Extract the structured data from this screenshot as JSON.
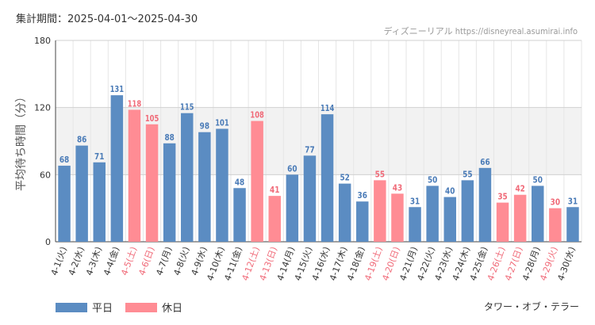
{
  "header": {
    "period": "集計期間：2025-04-01～2025-04-30",
    "watermark": "ディズニーリアル https://disneyreal.asumirai.info"
  },
  "footer": {
    "attraction": "タワー・オブ・テラー"
  },
  "legend": [
    {
      "label": "平日",
      "color": "#5b8cc2"
    },
    {
      "label": "休日",
      "color": "#ff8c94"
    }
  ],
  "colors": {
    "weekday_bar": "#5b8cc2",
    "holiday_bar": "#ff8c94",
    "weekday_text": "#4a7bb7",
    "holiday_text": "#f06a78"
  },
  "chart_data": {
    "type": "bar",
    "ylabel": "平均待ち時間（分）",
    "ylim": [
      0,
      180
    ],
    "yticks": [
      0,
      60,
      120,
      180
    ],
    "grid": true,
    "legend_position": "bottom-left",
    "shaded_band": [
      60,
      120
    ],
    "categories": [
      "4-1(火)",
      "4-2(水)",
      "4-3(木)",
      "4-4(金)",
      "4-5(土)",
      "4-6(日)",
      "4-7(月)",
      "4-8(火)",
      "4-9(水)",
      "4-10(木)",
      "4-11(金)",
      "4-12(土)",
      "4-13(日)",
      "4-14(月)",
      "4-15(火)",
      "4-16(水)",
      "4-17(木)",
      "4-18(金)",
      "4-19(土)",
      "4-20(日)",
      "4-21(月)",
      "4-22(火)",
      "4-23(水)",
      "4-24(木)",
      "4-25(金)",
      "4-26(土)",
      "4-27(日)",
      "4-28(月)",
      "4-29(火)",
      "4-30(水)"
    ],
    "values": [
      68,
      86,
      71,
      131,
      118,
      105,
      88,
      115,
      98,
      101,
      48,
      108,
      41,
      60,
      77,
      114,
      52,
      36,
      55,
      43,
      31,
      50,
      40,
      55,
      66,
      35,
      42,
      50,
      30,
      31
    ],
    "day_type": [
      "平日",
      "平日",
      "平日",
      "平日",
      "休日",
      "休日",
      "平日",
      "平日",
      "平日",
      "平日",
      "平日",
      "休日",
      "休日",
      "平日",
      "平日",
      "平日",
      "平日",
      "平日",
      "休日",
      "休日",
      "平日",
      "平日",
      "平日",
      "平日",
      "平日",
      "休日",
      "休日",
      "平日",
      "休日",
      "平日"
    ]
  }
}
